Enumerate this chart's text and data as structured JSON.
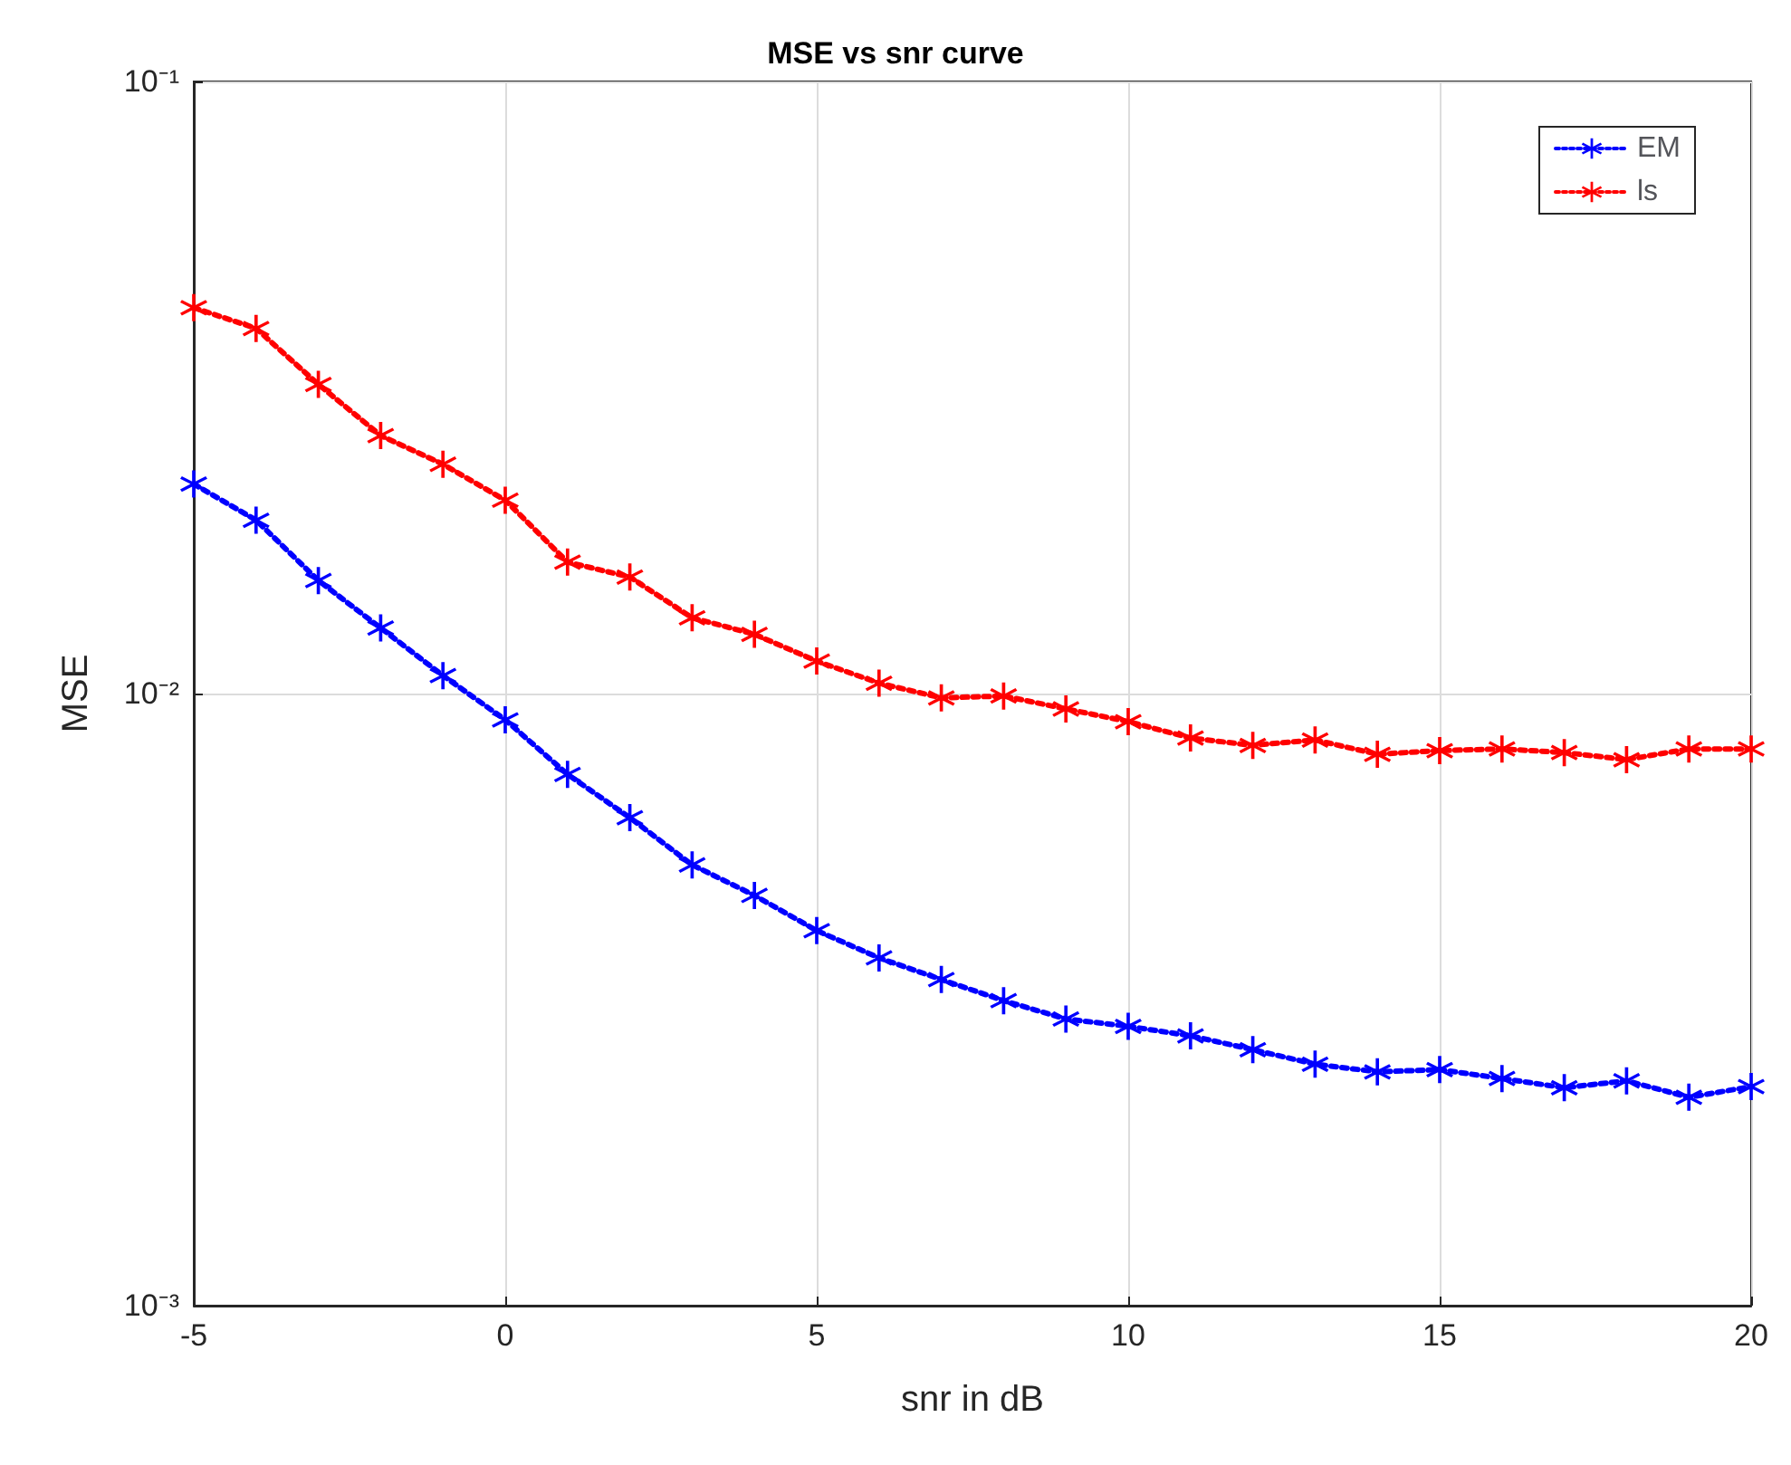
{
  "chart_data": {
    "type": "line",
    "title": "MSE vs snr curve",
    "xlabel": "snr in dB",
    "ylabel": "MSE",
    "x": [
      -5,
      -4,
      -3,
      -2,
      -1,
      0,
      1,
      2,
      3,
      4,
      5,
      6,
      7,
      8,
      9,
      10,
      11,
      12,
      13,
      14,
      15,
      16,
      17,
      18,
      19,
      20
    ],
    "series": [
      {
        "name": "EM",
        "color": "#0000ff",
        "values": [
          0.022,
          0.0192,
          0.0153,
          0.0128,
          0.0107,
          0.00906,
          0.00738,
          0.00627,
          0.00525,
          0.00468,
          0.0041,
          0.0037,
          0.00341,
          0.00315,
          0.00294,
          0.00286,
          0.00276,
          0.00262,
          0.00248,
          0.00241,
          0.00243,
          0.00235,
          0.00227,
          0.00233,
          0.00219,
          0.00228
        ]
      },
      {
        "name": "ls",
        "color": "#ff0000",
        "values": [
          0.0427,
          0.0395,
          0.032,
          0.0264,
          0.0237,
          0.0207,
          0.0164,
          0.0155,
          0.0133,
          0.0125,
          0.0113,
          0.0104,
          0.00984,
          0.00991,
          0.00944,
          0.009,
          0.00846,
          0.00823,
          0.0084,
          0.00796,
          0.00807,
          0.00812,
          0.00801,
          0.0078,
          0.00812,
          0.00812
        ]
      }
    ],
    "xlim": [
      -5,
      20
    ],
    "xticks": [
      -5,
      0,
      5,
      10,
      15,
      20
    ],
    "ylim": [
      0.001,
      0.1
    ],
    "yticks": [
      {
        "value": 0.001,
        "label": "10⁻³"
      },
      {
        "value": 0.01,
        "label": "10⁻²"
      },
      {
        "value": 0.1,
        "label": "10⁻¹"
      }
    ],
    "log": "y",
    "grid": true,
    "legend": "top right",
    "marker": "star",
    "line_style": "dotted"
  }
}
